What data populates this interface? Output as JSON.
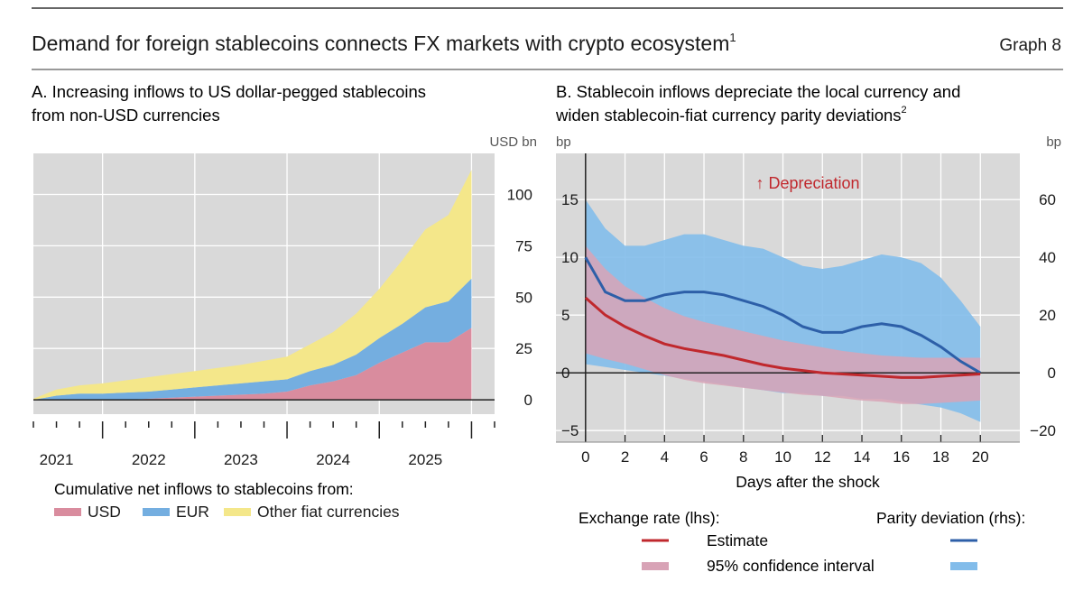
{
  "header": {
    "title": "Demand for foreign stablecoins connects FX markets with crypto ecosystem",
    "title_sup": "1",
    "graph_label": "Graph 8"
  },
  "panel_a": {
    "title_line1": "A. Increasing inflows to US dollar-pegged stablecoins",
    "title_line2": "from non-USD currencies",
    "unit": "USD bn",
    "legend_title": "Cumulative net inflows to stablecoins from:",
    "chart_data": {
      "type": "area",
      "stacked": true,
      "x_tick_labels": [
        "2021",
        "2022",
        "2023",
        "2024",
        "2025"
      ],
      "y_tick_labels": [
        "0",
        "25",
        "50",
        "75",
        "100"
      ],
      "ylim": [
        -7,
        120
      ],
      "y_axis_side": "right",
      "grid": true,
      "background": "#d9d9d9",
      "x": [
        2020.75,
        2021.0,
        2021.25,
        2021.5,
        2021.75,
        2022.0,
        2022.25,
        2022.5,
        2022.75,
        2023.0,
        2023.25,
        2023.5,
        2023.75,
        2024.0,
        2024.25,
        2024.5,
        2024.75,
        2025.0,
        2025.25,
        2025.5
      ],
      "series": [
        {
          "name": "USD",
          "color": "#d98c9e",
          "values": [
            0,
            0,
            0,
            0,
            0,
            0.5,
            1,
            1.5,
            2,
            2.5,
            3,
            4,
            7,
            9,
            12,
            18,
            23,
            28,
            28,
            35
          ]
        },
        {
          "name": "EUR",
          "color": "#74aee0",
          "values": [
            0,
            2,
            3,
            3,
            3.5,
            3.5,
            4,
            4.5,
            5,
            5.5,
            6,
            6,
            7,
            8,
            10,
            12,
            14,
            17,
            20,
            24
          ]
        },
        {
          "name": "Other fiat currencies",
          "color": "#f4e78a",
          "values": [
            0.5,
            3,
            4,
            5,
            6,
            7,
            7.5,
            8,
            8.5,
            9,
            10,
            11,
            13,
            16,
            20,
            24,
            31,
            38,
            42,
            53
          ]
        }
      ]
    }
  },
  "panel_b": {
    "title_line1": "B. Stablecoin inflows depreciate the local currency and",
    "title_line2": "widen stablecoin-fiat currency parity deviations",
    "title_sup": "2",
    "unit_left": "bp",
    "unit_right": "bp",
    "xlabel": "Days after the shock",
    "annotation": "↑ Depreciation",
    "legend": {
      "left_title": "Exchange rate (lhs):",
      "right_title": "Parity deviation (rhs):",
      "estimate_label": "Estimate",
      "ci_label": "95% confidence interval"
    },
    "chart_data": {
      "type": "line",
      "x_tick_labels": [
        "0",
        "2",
        "4",
        "6",
        "8",
        "10",
        "12",
        "14",
        "16",
        "18",
        "20"
      ],
      "xlim": [
        -1.5,
        22
      ],
      "left_axis": {
        "ticks": [
          "−5",
          "0",
          "5",
          "10",
          "15"
        ],
        "ylim": [
          -6,
          19
        ]
      },
      "right_axis": {
        "ticks": [
          "−20",
          "0",
          "20",
          "40",
          "60"
        ],
        "ylim": [
          -24,
          76
        ]
      },
      "grid": true,
      "background": "#d9d9d9",
      "x": [
        0,
        1,
        2,
        3,
        4,
        5,
        6,
        7,
        8,
        9,
        10,
        11,
        12,
        13,
        14,
        15,
        16,
        17,
        18,
        19,
        20
      ],
      "series": [
        {
          "name": "Exchange rate estimate",
          "axis": "left",
          "color": "#c0282d",
          "values": [
            6.5,
            5.0,
            4.0,
            3.2,
            2.5,
            2.1,
            1.8,
            1.5,
            1.1,
            0.7,
            0.4,
            0.2,
            0.0,
            -0.1,
            -0.2,
            -0.3,
            -0.4,
            -0.4,
            -0.3,
            -0.2,
            -0.1
          ]
        },
        {
          "name": "Exchange rate 95% confidence interval",
          "axis": "left",
          "color": "#d8a3b6",
          "band": true,
          "lower": [
            1.7,
            1.2,
            0.8,
            0.3,
            -0.2,
            -0.6,
            -0.9,
            -1.1,
            -1.3,
            -1.5,
            -1.7,
            -1.9,
            -2.0,
            -2.2,
            -2.4,
            -2.5,
            -2.7,
            -2.7,
            -2.6,
            -2.5,
            -2.4
          ],
          "upper": [
            11.0,
            9.0,
            7.5,
            6.5,
            5.6,
            4.9,
            4.4,
            4.0,
            3.6,
            3.2,
            2.8,
            2.5,
            2.2,
            1.9,
            1.7,
            1.5,
            1.4,
            1.3,
            1.3,
            1.3,
            1.3
          ]
        },
        {
          "name": "Parity deviation estimate",
          "axis": "right",
          "color": "#2d5fa8",
          "values": [
            40,
            28,
            25,
            25,
            27,
            28,
            28,
            27,
            25,
            23,
            20,
            16,
            14,
            14,
            16,
            17,
            16,
            13,
            9,
            4,
            0
          ]
        },
        {
          "name": "Parity deviation 95% confidence interval",
          "axis": "right",
          "color": "#82bcea",
          "band": true,
          "lower": [
            3,
            2,
            1,
            0,
            -1,
            -2,
            -3,
            -4,
            -5,
            -6,
            -7,
            -7,
            -8,
            -8,
            -9,
            -9,
            -10,
            -11,
            -12,
            -14,
            -17
          ]
        },
        {
          "name": "Parity deviation 95% confidence interval upper",
          "axis": "right",
          "band_upper_of": 3,
          "values": [
            60,
            50,
            44,
            44,
            46,
            48,
            48,
            46,
            44,
            43,
            40,
            37,
            36,
            37,
            39,
            41,
            40,
            38,
            33,
            25,
            16
          ]
        }
      ]
    }
  }
}
